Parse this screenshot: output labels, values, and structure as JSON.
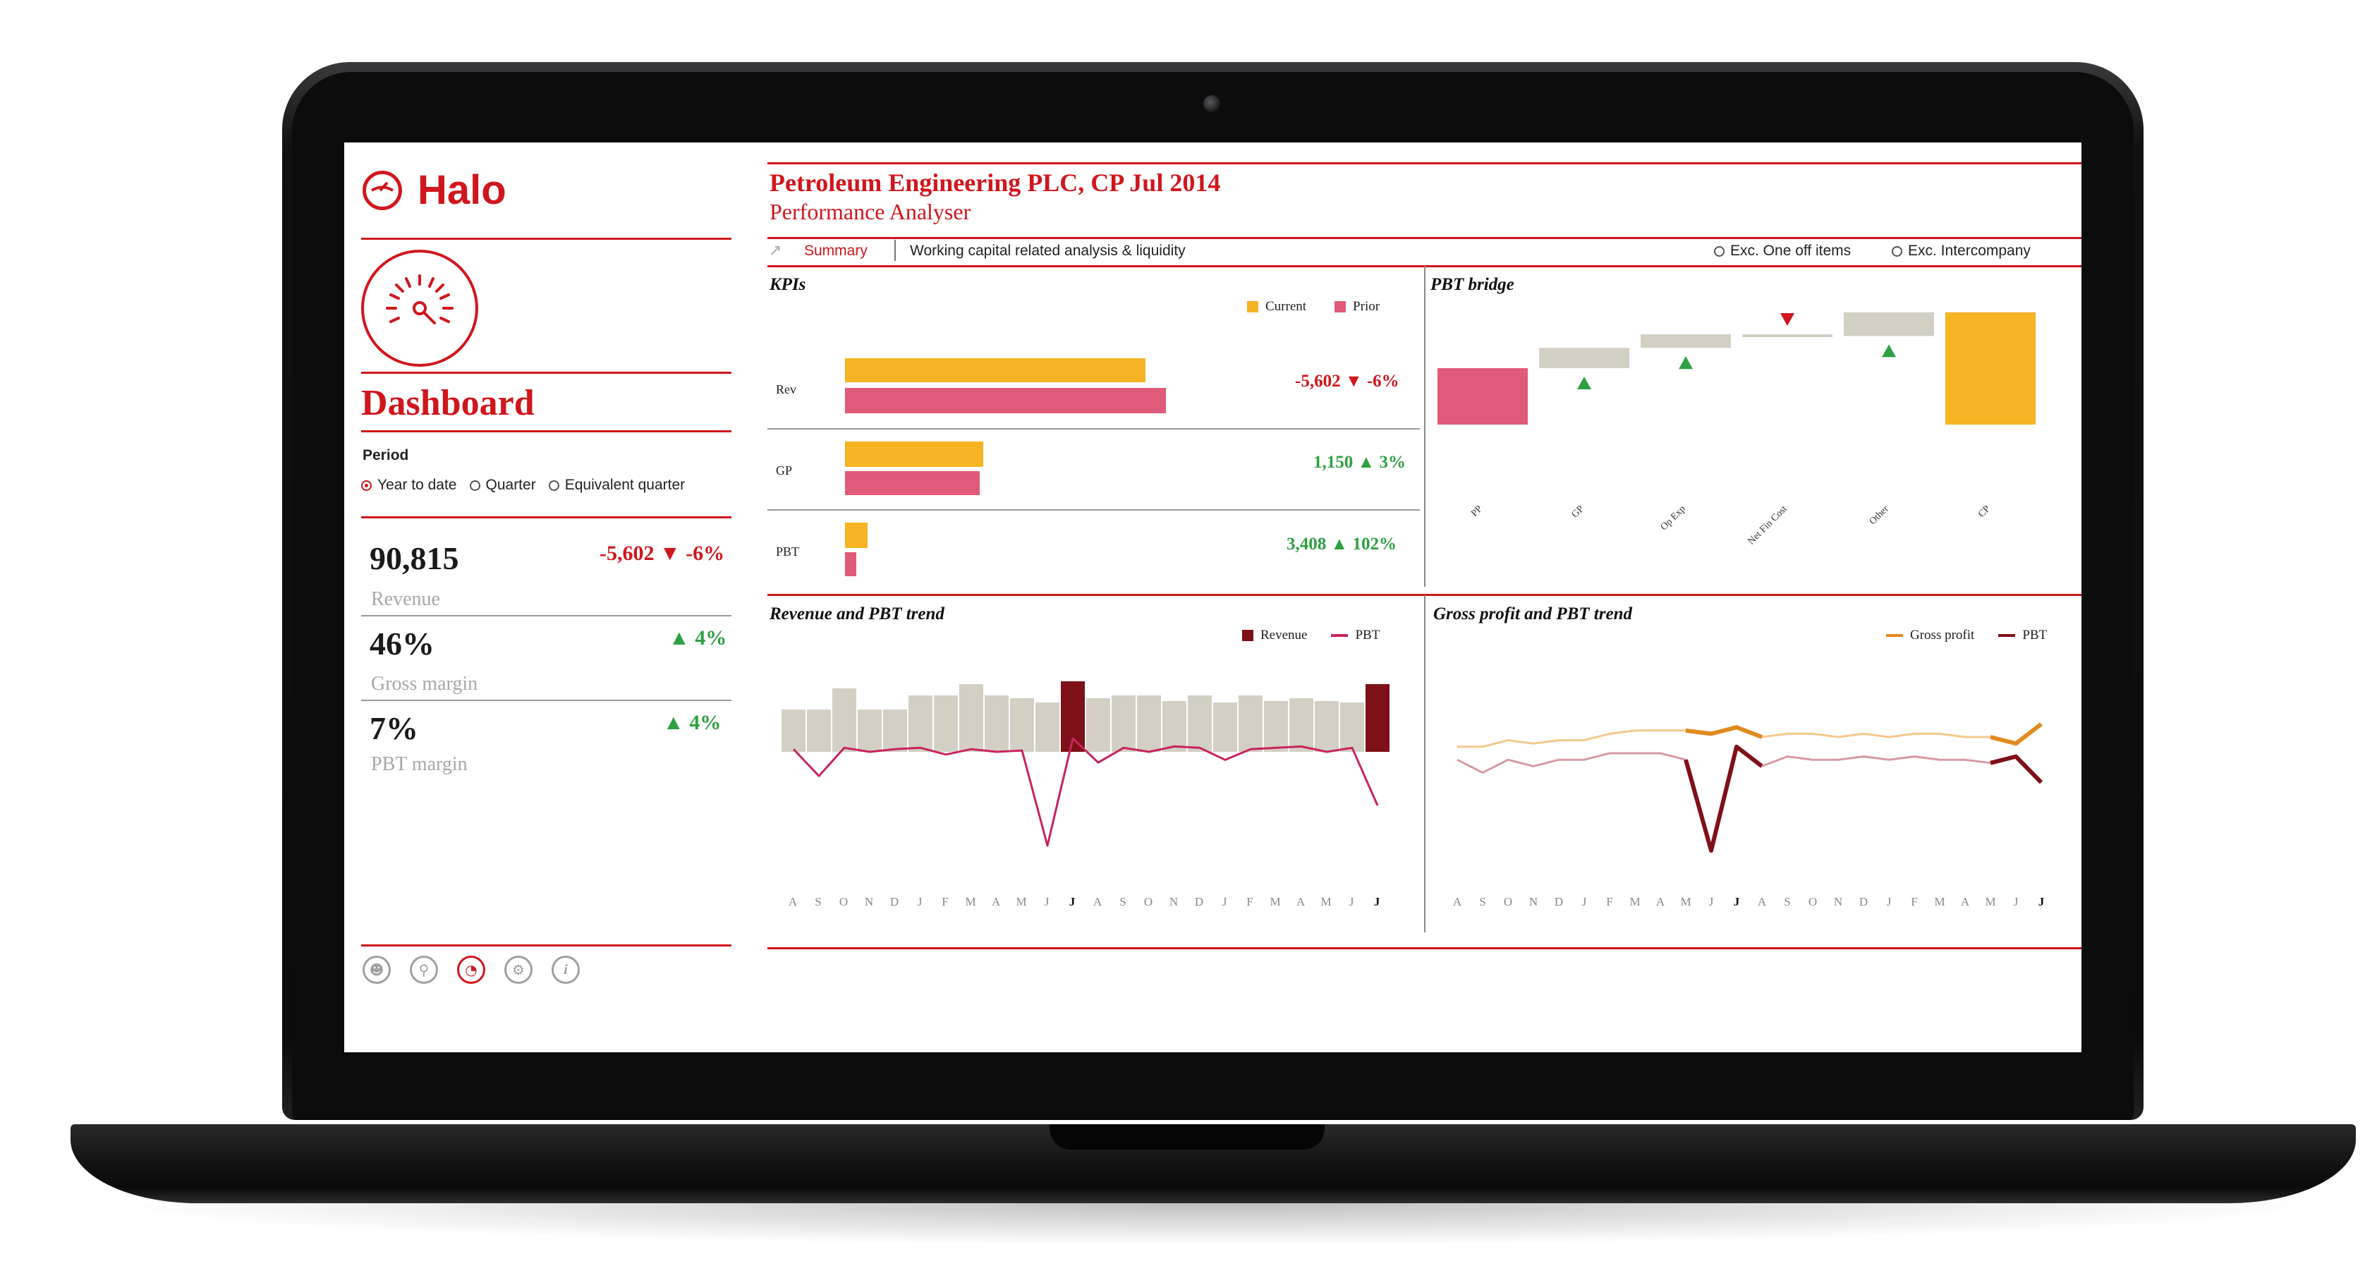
{
  "app": {
    "logo_text": "Halo"
  },
  "sidebar": {
    "title": "Dashboard",
    "period_label": "Period",
    "period_options": [
      {
        "label": "Year to date",
        "selected": true
      },
      {
        "label": "Quarter",
        "selected": false
      },
      {
        "label": "Equivalent quarter",
        "selected": false
      }
    ],
    "metrics": [
      {
        "value": "90,815",
        "label": "Revenue",
        "delta": "-5,602 ▼ -6%",
        "status": "negative"
      },
      {
        "value": "46%",
        "label": "Gross margin",
        "delta": "▲ 4%",
        "status": "positive"
      },
      {
        "value": "7%",
        "label": "PBT margin",
        "delta": "▲ 4%",
        "status": "positive"
      }
    ],
    "footer_icons": [
      "user-icon",
      "search-icon",
      "dashboard-gauge-icon",
      "settings-icon",
      "info-icon"
    ]
  },
  "header": {
    "company": "Petroleum Engineering PLC, CP Jul 2014",
    "subtitle": "Performance Analyser",
    "tabs": [
      {
        "label": "Summary",
        "active": true
      },
      {
        "label": "Working capital related analysis & liquidity",
        "active": false
      }
    ],
    "options": [
      {
        "label": "Exc. One off items",
        "checked": false
      },
      {
        "label": "Exc.  Intercompany",
        "checked": false
      }
    ]
  },
  "colors": {
    "accent": "#d0161d",
    "current": "#f6b323",
    "prior": "#e05a7a",
    "bar_neutral": "#d3d0c3",
    "bar_highlight": "#7e1018",
    "positive": "#2ea043",
    "gross_profit": "#e08a1e"
  },
  "kpis": {
    "title": "KPIs",
    "legend": [
      "Current",
      "Prior"
    ],
    "rows": [
      {
        "label": "Rev",
        "current": 185,
        "prior": 198,
        "delta": "-5,602  ▼ -6%",
        "status": "negative"
      },
      {
        "label": "GP",
        "current": 85,
        "prior": 83,
        "delta": "1,150  ▲ 3%",
        "status": "positive"
      },
      {
        "label": "PBT",
        "current": 14,
        "prior": 7,
        "delta": "3,408  ▲ 102%",
        "status": "positive"
      }
    ]
  },
  "chart_data": [
    {
      "type": "bar",
      "title": "PBT bridge",
      "subtype": "waterfall",
      "categories": [
        "PP",
        "GP",
        "Op Exp",
        "Net Fin Cost",
        "Other",
        "CP"
      ],
      "values": [
        100,
        36,
        24,
        -3,
        42,
        199
      ],
      "markers": [
        "",
        "up",
        "up",
        "down",
        "up",
        ""
      ]
    },
    {
      "type": "bar",
      "title": "Revenue and PBT trend",
      "legend": [
        "Revenue",
        "PBT"
      ],
      "x": [
        "A",
        "S",
        "O",
        "N",
        "D",
        "J",
        "F",
        "M",
        "A",
        "M",
        "J",
        "J",
        "A",
        "S",
        "O",
        "N",
        "D",
        "J",
        "F",
        "M",
        "A",
        "M",
        "J",
        "J"
      ],
      "bold_x": [
        11,
        23
      ],
      "series": [
        {
          "name": "Revenue",
          "values": [
            30,
            30,
            45,
            30,
            30,
            40,
            40,
            48,
            40,
            38,
            35,
            50,
            38,
            40,
            40,
            36,
            40,
            35,
            40,
            36,
            38,
            36,
            35,
            48
          ]
        },
        {
          "name": "PBT",
          "values": [
            2,
            -18,
            3,
            0,
            2,
            3,
            -2,
            2,
            0,
            1,
            -70,
            10,
            -8,
            3,
            0,
            4,
            3,
            -6,
            2,
            3,
            4,
            0,
            3,
            -40
          ]
        }
      ]
    },
    {
      "type": "line",
      "title": "Gross profit and PBT trend",
      "legend": [
        "Gross profit",
        "PBT"
      ],
      "x": [
        "A",
        "S",
        "O",
        "N",
        "D",
        "J",
        "F",
        "M",
        "A",
        "M",
        "J",
        "J",
        "A",
        "S",
        "O",
        "N",
        "D",
        "J",
        "F",
        "M",
        "A",
        "M",
        "J",
        "J"
      ],
      "bold_x": [
        11,
        23
      ],
      "series": [
        {
          "name": "Gross profit",
          "values": [
            42,
            42,
            44,
            43,
            44,
            44,
            46,
            47,
            47,
            47,
            46,
            48,
            45,
            46,
            46,
            45,
            46,
            45,
            46,
            46,
            45,
            45,
            43,
            49
          ]
        },
        {
          "name": "PBT",
          "values": [
            38,
            34,
            38,
            36,
            38,
            38,
            40,
            40,
            40,
            38,
            10,
            42,
            36,
            39,
            38,
            38,
            39,
            38,
            39,
            38,
            38,
            37,
            39,
            31
          ]
        }
      ]
    }
  ]
}
